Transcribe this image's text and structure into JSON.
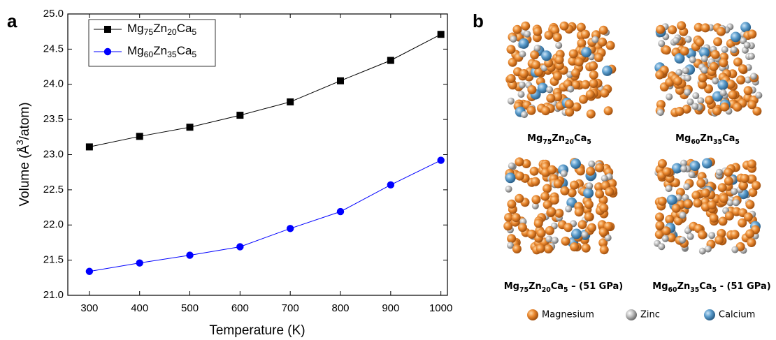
{
  "chart_data": {
    "type": "line",
    "x": [
      300,
      400,
      500,
      600,
      700,
      800,
      900,
      1000
    ],
    "series": [
      {
        "name": "Mg75Zn20Ca5",
        "color": "#000000",
        "marker": "square",
        "values": [
          23.11,
          23.26,
          23.39,
          23.56,
          23.75,
          24.05,
          24.34,
          24.71
        ]
      },
      {
        "name": "Mg60Zn35Ca5",
        "color": "#0000ff",
        "marker": "circle",
        "values": [
          21.34,
          21.46,
          21.57,
          21.69,
          21.95,
          22.19,
          22.57,
          22.92
        ]
      }
    ],
    "x_label": "Temperature (K)",
    "y_label": "Volume (Å3/atom)",
    "xlim": [
      257,
      1013
    ],
    "xticks": [
      300,
      400,
      500,
      600,
      700,
      800,
      900,
      1000
    ],
    "ylim": [
      21,
      25
    ],
    "yticks": [
      {
        "value": 21,
        "label": "21.0"
      },
      21.5,
      {
        "value": 22,
        "label": "22.0"
      },
      22.5,
      {
        "value": 23,
        "label": "23.0"
      },
      23.5,
      {
        "value": 24,
        "label": "24.0"
      },
      24.5,
      {
        "value": 25,
        "label": "25.0"
      }
    ],
    "legend": "upper left",
    "grid": false
  },
  "panel_labels": [
    "a",
    "b"
  ],
  "structures": {
    "captions": [
      "Mg75Zn20Ca5",
      "Mg60Zn35Ca5",
      "Mg75Zn20Ca5 – (51 GPa)",
      "Mg60Zn35Ca5 - (51 GPa)"
    ],
    "legend": [
      "Magnesium",
      "Zinc",
      "Calcium"
    ]
  }
}
